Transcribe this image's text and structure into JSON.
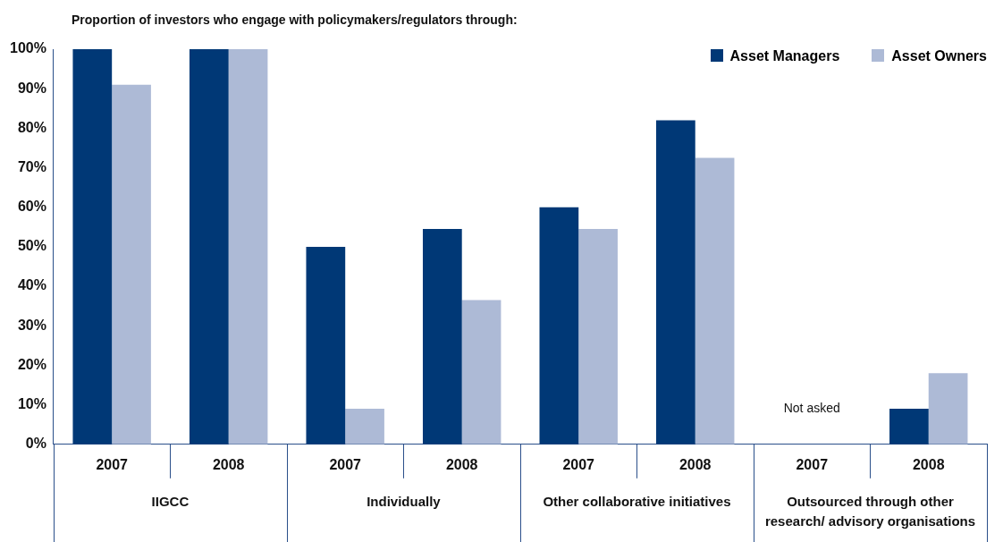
{
  "chart_data": {
    "type": "bar",
    "title": "Proportion of investors who engage with policymakers/regulators through:",
    "categories": [
      "2007",
      "2008",
      "2007",
      "2008",
      "2007",
      "2008",
      "2007",
      "2008"
    ],
    "series": [
      {
        "name": "Asset Managers",
        "color": "#003876",
        "values": [
          100,
          100,
          50,
          54.5,
          60,
          82,
          null,
          9
        ]
      },
      {
        "name": "Asset Owners",
        "color": "#adbad6",
        "values": [
          91,
          100,
          9,
          36.5,
          54.5,
          72.5,
          null,
          18
        ]
      }
    ],
    "ylim": [
      0,
      100
    ],
    "yticks": [
      {
        "value": 0,
        "label": "0%"
      },
      {
        "value": 10,
        "label": "10%"
      },
      {
        "value": 20,
        "label": "20%"
      },
      {
        "value": 30,
        "label": "30%"
      },
      {
        "value": 40,
        "label": "40%"
      },
      {
        "value": 50,
        "label": "50%"
      },
      {
        "value": 60,
        "label": "60%"
      },
      {
        "value": 70,
        "label": "70%"
      },
      {
        "value": 80,
        "label": "80%"
      },
      {
        "value": 90,
        "label": "90%"
      },
      {
        "value": 100,
        "label": "100%"
      }
    ],
    "annotations": [
      "IIGCC",
      "Individually",
      "Other collaborative initiatives",
      "Outsourced through other\nresearch/ advisory organisations",
      "Not asked"
    ],
    "grid": false,
    "legend": "top right"
  }
}
